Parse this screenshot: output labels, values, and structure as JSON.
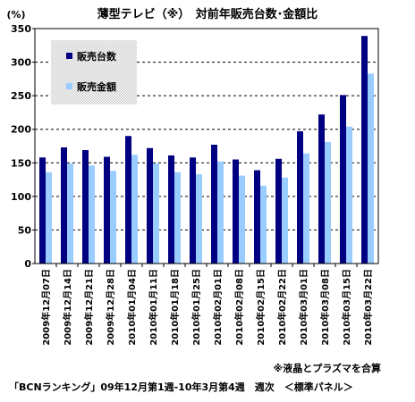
{
  "chart_data": {
    "type": "bar",
    "title": "薄型テレビ（※）　対前年販売台数･金額比",
    "y_unit_label": "(%)",
    "ylim": [
      0,
      350
    ],
    "y_ticks": [
      0,
      50,
      100,
      150,
      200,
      250,
      300,
      350
    ],
    "grid": "horizontal dashed",
    "legend_position": "top-left (inside plot)",
    "categories": [
      "2009年12月07日",
      "2009年12月14日",
      "2009年12月21日",
      "2009年12月28日",
      "2010年01月04日",
      "2010年01月11日",
      "2010年01月18日",
      "2010年01月25日",
      "2010年02月01日",
      "2010年02月08日",
      "2010年02月15日",
      "2010年02月22日",
      "2010年03月01日",
      "2010年03月08日",
      "2010年03月15日",
      "2010年03月22日"
    ],
    "series": [
      {
        "name": "販売台数",
        "color": "#000080",
        "values": [
          158,
          173,
          169,
          159,
          190,
          172,
          161,
          158,
          177,
          155,
          139,
          156,
          197,
          222,
          251,
          339
        ]
      },
      {
        "name": "販売金額",
        "color": "#99CCFF",
        "values": [
          136,
          149,
          146,
          138,
          162,
          149,
          136,
          133,
          152,
          131,
          116,
          128,
          164,
          181,
          204,
          283
        ]
      }
    ]
  },
  "footnote": "※液晶とプラズマを合算",
  "source": "「BCNランキング」09年12月第1週-10年3月第4週　週次　＜標準パネル＞",
  "colors": {
    "plot_background": "#FFFFFF",
    "legend_background": "#D9D9D9",
    "grid": "#000000"
  }
}
